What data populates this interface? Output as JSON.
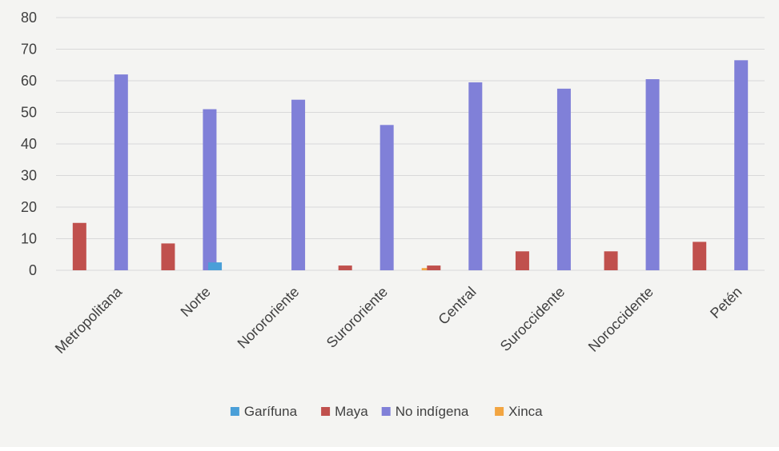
{
  "chart_data": {
    "type": "bar",
    "title": "",
    "xlabel": "",
    "ylabel": "",
    "ylim": [
      0,
      80
    ],
    "yticks": [
      0,
      10,
      20,
      30,
      40,
      50,
      60,
      70,
      80
    ],
    "grid": true,
    "legend_position": "bottom",
    "categories": [
      "Metropolitana",
      "Norte",
      "Norororiente",
      "Surororiente",
      "Central",
      "Suroccidente",
      "Noroccidente",
      "Petén"
    ],
    "series": [
      {
        "name": "Garífuna",
        "color": "#4a9fd8",
        "values": [
          0,
          0,
          2.5,
          0,
          0,
          0,
          0,
          0
        ]
      },
      {
        "name": "Maya",
        "color": "#c0504d",
        "values": [
          15,
          8.5,
          0,
          1.5,
          1.5,
          6,
          6,
          9
        ]
      },
      {
        "name": "No indígena",
        "color": "#8080d8",
        "values": [
          62,
          51,
          54,
          46,
          59.5,
          57.5,
          60.5,
          66.5
        ]
      },
      {
        "name": "Xinca",
        "color": "#f2a541",
        "values": [
          0,
          0,
          0,
          0.7,
          0,
          0,
          0,
          0
        ]
      }
    ]
  }
}
